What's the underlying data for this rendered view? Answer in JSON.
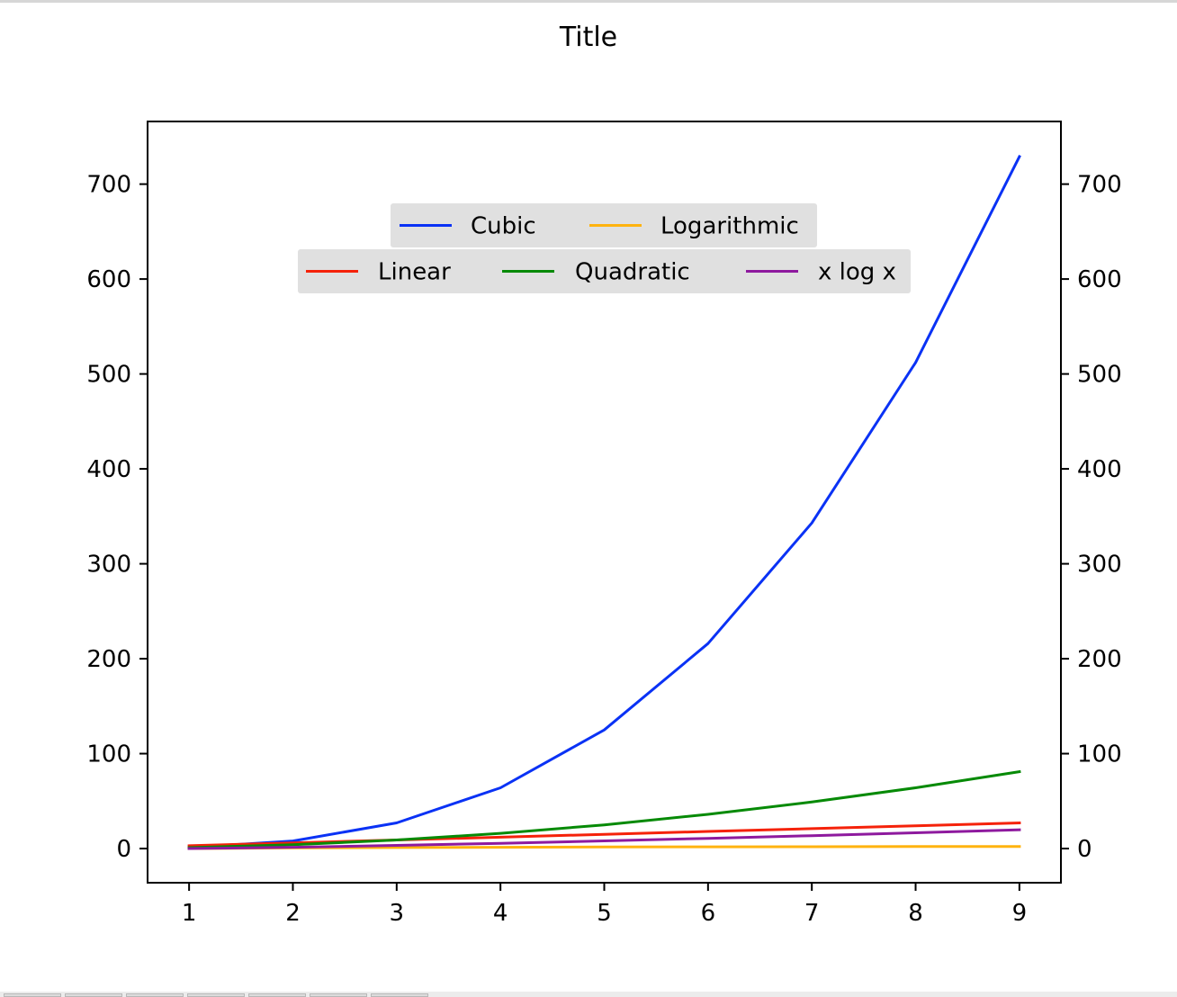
{
  "chart_data": {
    "type": "line",
    "title": "Title",
    "xlabel": "",
    "ylabel": "",
    "x": [
      1,
      2,
      3,
      4,
      5,
      6,
      7,
      8,
      9
    ],
    "xlim": [
      0.6,
      9.4
    ],
    "ylim": [
      -36,
      766
    ],
    "x_ticks": [
      1,
      2,
      3,
      4,
      5,
      6,
      7,
      8,
      9
    ],
    "y_ticks": [
      0,
      100,
      200,
      300,
      400,
      500,
      600,
      700
    ],
    "y_ticks_right": true,
    "grid": false,
    "series": [
      {
        "name": "Cubic",
        "color": "#0a32f5",
        "values": [
          1,
          8,
          27,
          64,
          125,
          216,
          343,
          512,
          729
        ]
      },
      {
        "name": "Logarithmic",
        "color": "#ffb30f",
        "values": [
          0,
          0.69,
          1.1,
          1.39,
          1.61,
          1.79,
          1.95,
          2.08,
          2.2
        ]
      },
      {
        "name": "Linear",
        "color": "#f5220a",
        "values": [
          3,
          6,
          9,
          12,
          15,
          18,
          21,
          24,
          27
        ]
      },
      {
        "name": "Quadratic",
        "color": "#068a06",
        "values": [
          1,
          4,
          9,
          16,
          25,
          36,
          49,
          64,
          81
        ]
      },
      {
        "name": "x log x",
        "color": "#8e1a9e",
        "values": [
          0,
          1.39,
          3.3,
          5.55,
          8.05,
          10.75,
          13.62,
          16.64,
          19.78
        ]
      }
    ],
    "legends": [
      {
        "placement": "upper-center",
        "entries": [
          "Cubic",
          "Logarithmic"
        ]
      },
      {
        "placement": "upper-center",
        "entries": [
          "Linear",
          "Quadratic",
          "x log x"
        ]
      }
    ]
  },
  "toolbar": {
    "buttons": [
      "",
      "",
      "",
      "",
      "",
      "",
      ""
    ]
  }
}
